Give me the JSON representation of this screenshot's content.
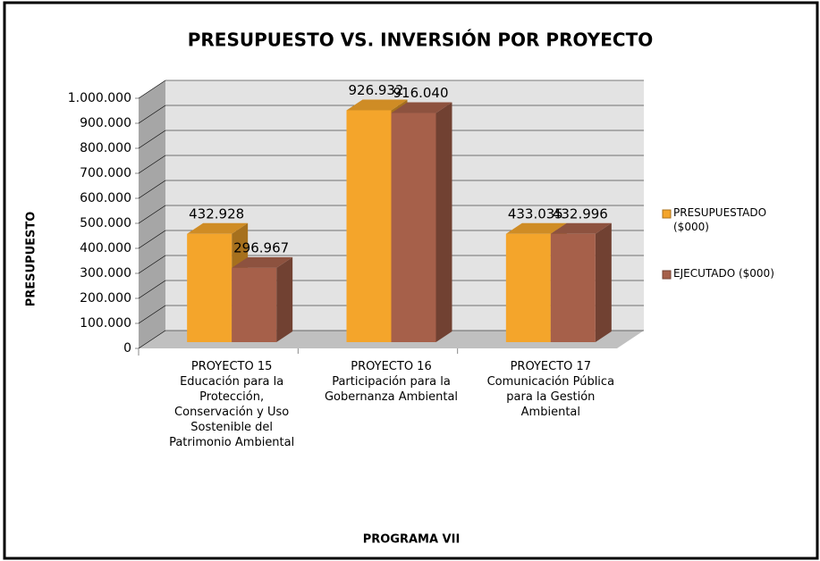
{
  "chart_data": {
    "type": "bar",
    "title": "PRESUPUESTO VS. INVERSIÓN  POR PROYECTO",
    "categories": [
      "PROYECTO 15 Educación para la Protección, Conservación y Uso Sostenible del Patrimonio Ambiental",
      "PROYECTO 16 Participación para la Gobernanza Ambiental",
      "PROYECTO 17 Comunicación Pública para la Gestión Ambiental"
    ],
    "series": [
      {
        "name": "PRESUPUESTADO ($000)",
        "color": "#f4a52b",
        "values": [
          432928,
          926932,
          433035
        ],
        "value_labels": [
          "432.928",
          "926.932",
          "433.035"
        ]
      },
      {
        "name": "EJECUTADO ($000)",
        "color": "#a6604a",
        "values": [
          296967,
          916040,
          432996
        ],
        "value_labels": [
          "296.967",
          "916.040",
          "432.996"
        ]
      }
    ],
    "y_axis_label": "PRESUPUESTO",
    "x_axis_label": "PROGRAMA VII",
    "ylim": [
      0,
      1000000
    ],
    "yticks": [
      0,
      {
        "value": 100000,
        "label": "100.000"
      },
      {
        "value": 200000,
        "label": "200.000"
      },
      {
        "value": 300000,
        "label": "300.000"
      },
      {
        "value": 400000,
        "label": "400.000"
      },
      {
        "value": 500000,
        "label": "500.000"
      },
      {
        "value": 600000,
        "label": "600.000"
      },
      {
        "value": 700000,
        "label": "700.000"
      },
      {
        "value": 800000,
        "label": "800.000"
      },
      {
        "value": 900000,
        "label": "900.000"
      },
      {
        "value": 1000000,
        "label": "1.000.000"
      }
    ],
    "grid": true,
    "legend": "right"
  }
}
